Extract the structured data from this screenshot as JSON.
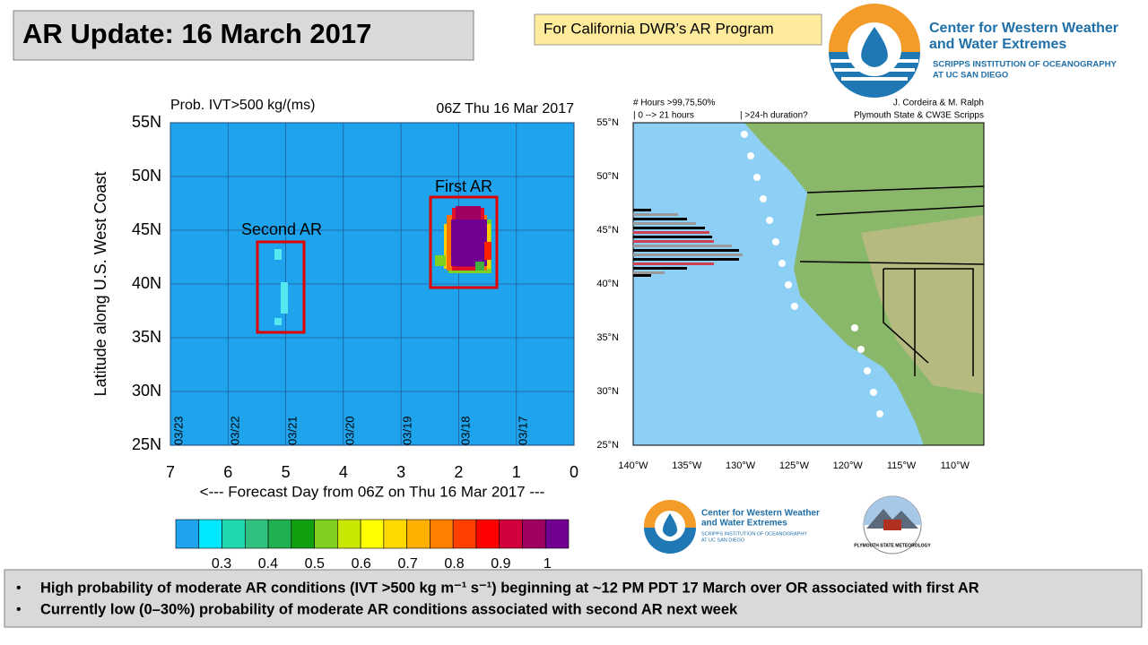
{
  "header": {
    "title": "AR Update: 16 March 2017",
    "program": "For California DWR’s AR Program",
    "org": {
      "line1": "Center for Western Weather",
      "line2": "and Water Extremes",
      "sub1": "SCRIPPS INSTITUTION OF OCEANOGRAPHY",
      "sub2": "AT UC SAN DIEGO"
    }
  },
  "left_panel": {
    "title": "Prob. IVT>500 kg/(ms)",
    "time": "06Z Thu 16 Mar 2017",
    "y_label": "Latitude along U.S. West Coast",
    "x_label": "<--- Forecast Day from 06Z on Thu 16 Mar 2017 ---",
    "y_ticks": [
      "55N",
      "50N",
      "45N",
      "40N",
      "35N",
      "30N",
      "25N"
    ],
    "x_ticks": [
      "7",
      "6",
      "5",
      "4",
      "3",
      "2",
      "1",
      "0"
    ],
    "dates": [
      "03/23",
      "03/22",
      "03/21",
      "03/20",
      "03/19",
      "03/18",
      "03/17"
    ],
    "annotations": [
      "Second AR",
      "First AR"
    ],
    "colorbar_ticks": [
      "0.3",
      "0.4",
      "0.5",
      "0.6",
      "0.7",
      "0.8",
      "0.9",
      "1"
    ]
  },
  "right_panel": {
    "header1": "# Hours >99,75,50%",
    "header2": "| 0 --> 21 hours",
    "header3": "| >24-h duration?",
    "credit1": "J. Cordeira & M. Ralph",
    "credit2": "Plymouth State & CW3E Scripps",
    "lat_ticks": [
      "55°N",
      "50°N",
      "45°N",
      "40°N",
      "35°N",
      "30°N",
      "25°N"
    ],
    "lon_ticks": [
      "140°W",
      "135°W",
      "130°W",
      "125°W",
      "120°W",
      "115°W",
      "110°W"
    ]
  },
  "footer_logos": {
    "line1": "Center for Western Weather",
    "line2": "and Water Extremes",
    "sub1": "SCRIPPS INSTITUTION OF OCEANOGRAPHY",
    "sub2": "AT UC SAN DIEGO",
    "plymouth": "PLYMOUTH STATE METEOROLOGY"
  },
  "bullets": [
    "High probability of moderate AR conditions (IVT >500 kg m⁻¹ s⁻¹) beginning at ~12 PM PDT 17 March over OR associated with first AR",
    "Currently low (0–30%) probability of moderate AR conditions associated with second AR next week"
  ]
}
